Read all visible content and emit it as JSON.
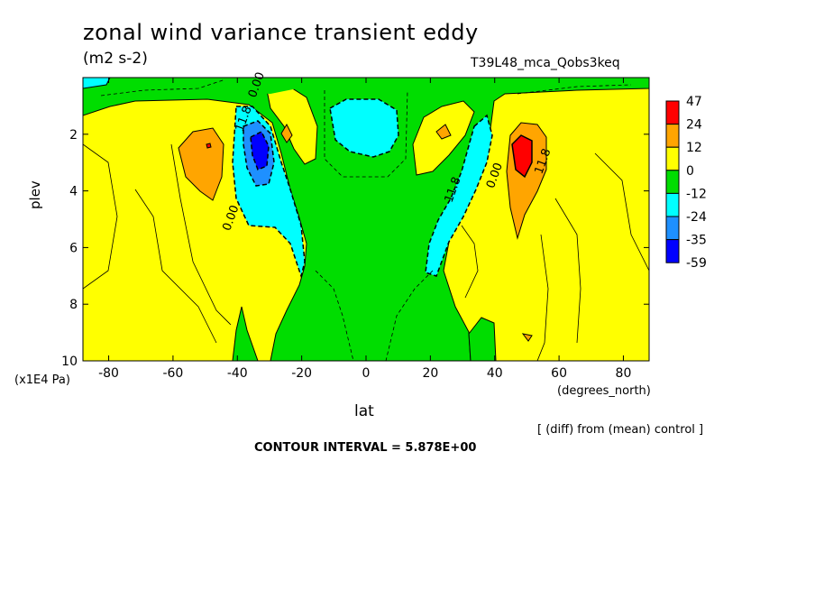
{
  "title": "zonal wind variance transient eddy",
  "units": "(m2 s-2)",
  "run_id": "T39L48_mca_Qobs3keq",
  "y_axis": {
    "label": "plev",
    "unit": "(x1E4 Pa)"
  },
  "x_axis": {
    "label": "lat",
    "unit": "(degrees_north)"
  },
  "diff_note": "[ (diff) from (mean) control ]",
  "contour_interval": "CONTOUR INTERVAL = 5.878E+00",
  "chart_data": {
    "type": "heatmap",
    "title": "zonal wind variance transient eddy",
    "subtitle": "(m2 s-2)",
    "xlabel": "lat",
    "ylabel": "plev",
    "xlim": [
      -88,
      88
    ],
    "ylim": [
      10,
      0
    ],
    "x_ticks": [
      -80,
      -60,
      -40,
      -20,
      0,
      20,
      40,
      60,
      80
    ],
    "x_tick_labels": [
      "-80",
      "-60",
      "-40",
      "-20",
      "0",
      "20",
      "40",
      "60",
      "80"
    ],
    "y_ticks": [
      2,
      4,
      6,
      8,
      10
    ],
    "y_tick_labels": [
      "2",
      "4",
      "6",
      "8",
      "10"
    ],
    "colorbar": {
      "labels": [
        "47",
        "24",
        "12",
        "0",
        "-12",
        "-24",
        "-35",
        "-59"
      ],
      "colors": [
        "#ff0000",
        "#ffa500",
        "#ffff00",
        "#00dd00",
        "#00ffff",
        "#1e90ff",
        "#0000ff"
      ]
    },
    "contour_labels": [
      {
        "text": "0.00",
        "lat": -33,
        "plev": 0.3
      },
      {
        "text": "0.00",
        "lat": -41,
        "plev": 5.0
      },
      {
        "text": "11.8",
        "lat": -37,
        "plev": 1.5
      },
      {
        "text": "11.8",
        "lat": 28,
        "plev": 4.0
      },
      {
        "text": "0.00",
        "lat": 41,
        "plev": 3.5
      },
      {
        "text": "11.8",
        "lat": 56,
        "plev": 3.0
      }
    ],
    "contour_interval": 5.878,
    "features": [
      {
        "sign": "positive",
        "lat": -49,
        "plev": 2.6,
        "peak": 24
      },
      {
        "sign": "negative",
        "lat": -33,
        "plev": 2.6,
        "peak": -59
      },
      {
        "sign": "negative",
        "lat": 0,
        "plev": 1.3,
        "peak": -24
      },
      {
        "sign": "negative",
        "lat": 33,
        "plev": 3.5,
        "peak": -24
      },
      {
        "sign": "positive",
        "lat": 48,
        "plev": 2.6,
        "peak": 47
      }
    ]
  },
  "colors": {
    "red": "#ff0000",
    "orange": "#ffa500",
    "yellow": "#ffff00",
    "green": "#00dd00",
    "cyan": "#00ffff",
    "blue": "#1e90ff",
    "darkblue": "#0000ff"
  }
}
